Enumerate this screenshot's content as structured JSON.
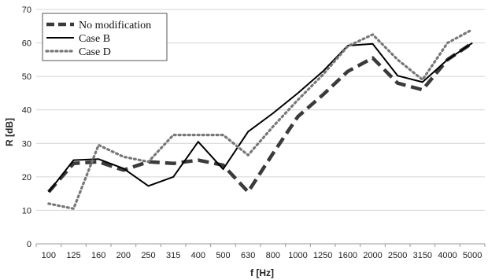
{
  "chart_data": {
    "type": "line",
    "title": "",
    "xlabel": "f [Hz]",
    "ylabel": "R [dB]",
    "ylim": [
      0,
      70
    ],
    "yticks": [
      0,
      10,
      20,
      30,
      40,
      50,
      60,
      70
    ],
    "grid": "horizontal",
    "legend_position": "top-left",
    "categories": [
      "100",
      "125",
      "160",
      "200",
      "250",
      "315",
      "400",
      "500",
      "630",
      "800",
      "1000",
      "1250",
      "1600",
      "2000",
      "2500",
      "3150",
      "4000",
      "5000"
    ],
    "series": [
      {
        "name": "No modification",
        "style": "dashed",
        "color": "#3a3a3a",
        "values": [
          15.5,
          24,
          24.5,
          22,
          24.5,
          24,
          25,
          23.5,
          15.5,
          27,
          38,
          44.5,
          51.5,
          55.5,
          48,
          46,
          55,
          60
        ]
      },
      {
        "name": "Case B",
        "style": "solid",
        "color": "#000000",
        "values": [
          15.5,
          25,
          25.3,
          22.5,
          17.3,
          20,
          30.5,
          22.3,
          33.5,
          39,
          45,
          51.5,
          59.2,
          59.7,
          50.2,
          48.3,
          55,
          60
        ]
      },
      {
        "name": "Case D",
        "style": "dotted",
        "color": "#777777",
        "values": [
          12,
          10.5,
          29.5,
          26,
          24.5,
          32.5,
          32.5,
          32.5,
          26.5,
          35,
          43,
          50.5,
          59,
          62.5,
          55,
          49,
          60,
          64
        ]
      }
    ]
  }
}
